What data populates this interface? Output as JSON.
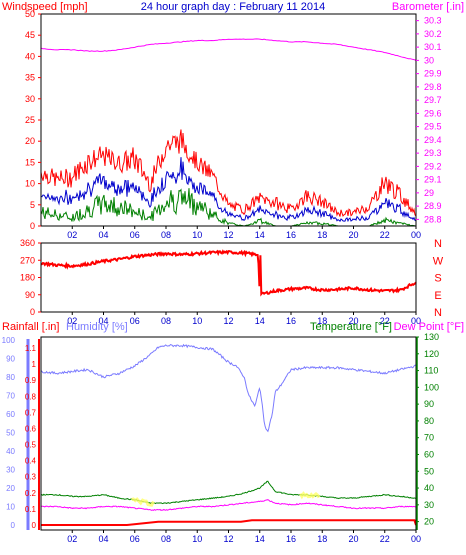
{
  "colors": {
    "wind_speed": "#ff0000",
    "wind_avg": "#0000cc",
    "wind_gust_base": "#008000",
    "barometer": "#ff00ff",
    "title": "#0000cc",
    "direction": "#ff0000",
    "rainfall": "#ff0000",
    "humidity": "#7b7bff",
    "temperature": "#008000",
    "dewpoint": "#ff00ff",
    "axis": "#0000cc",
    "grid": "#d8d8d8",
    "frame": "#000000"
  },
  "chart_data": [
    {
      "type": "line",
      "title": "24 hour graph day : February 11 2014",
      "x_ticks": [
        "02",
        "04",
        "06",
        "08",
        "10",
        "12",
        "14",
        "16",
        "18",
        "20",
        "22",
        "00"
      ],
      "left_axis": {
        "label": "Windspeed [mph]",
        "ticks": [
          0,
          5,
          10,
          15,
          20,
          25,
          30,
          35,
          40,
          45,
          50
        ],
        "ylim": [
          0,
          50
        ]
      },
      "right_axis": {
        "label": "Barometer [.in]",
        "ticks": [
          28.8,
          28.9,
          29.0,
          29.1,
          29.2,
          29.3,
          29.4,
          29.5,
          29.6,
          29.7,
          29.8,
          29.9,
          30.0,
          30.1,
          30.2,
          30.3
        ],
        "tick_labels": [
          "28.8",
          "28.9",
          "29",
          "29.1",
          "29.2",
          "29.3",
          "29.4",
          "29.5",
          "29.6",
          "29.7",
          "29.8",
          "29.9",
          "30",
          "30.1",
          "30.2",
          "30.3"
        ],
        "ylim": [
          28.75,
          30.35
        ]
      },
      "series": [
        {
          "name": "Windspeed [mph]",
          "axis": "left",
          "style": "band",
          "hours": [
            0,
            1,
            2,
            3,
            4,
            5,
            6,
            7,
            8,
            9,
            10,
            11,
            12,
            13,
            14,
            15,
            16,
            17,
            18,
            19,
            20,
            21,
            22,
            23,
            24
          ],
          "low": [
            5,
            4,
            3,
            6,
            8,
            7,
            5,
            3,
            9,
            10,
            8,
            4,
            1,
            0,
            2,
            0,
            0,
            1,
            1,
            0,
            0,
            0,
            2,
            1,
            0
          ],
          "high": [
            15,
            13,
            14,
            18,
            19,
            17,
            19,
            12,
            22,
            23,
            17,
            14,
            6,
            5,
            8,
            7,
            5,
            9,
            7,
            4,
            4,
            6,
            13,
            9,
            4
          ]
        },
        {
          "name": "Barometer [.in]",
          "axis": "right",
          "hours": [
            0,
            1,
            2,
            3,
            4,
            5,
            6,
            7,
            8,
            9,
            10,
            11,
            12,
            13,
            14,
            15,
            16,
            17,
            18,
            19,
            20,
            21,
            22,
            23,
            24
          ],
          "values": [
            30.09,
            30.08,
            30.08,
            30.07,
            30.07,
            30.08,
            30.1,
            30.12,
            30.13,
            30.14,
            30.15,
            30.15,
            30.16,
            30.16,
            30.16,
            30.15,
            30.14,
            30.14,
            30.13,
            30.12,
            30.1,
            30.08,
            30.06,
            30.03,
            30.0
          ]
        }
      ],
      "grid": false
    },
    {
      "type": "line",
      "x_ticks": [
        "02",
        "04",
        "06",
        "08",
        "10",
        "12",
        "14",
        "16",
        "18",
        "20",
        "22",
        "00"
      ],
      "left_axis": {
        "label": "",
        "ticks": [
          0,
          90,
          180,
          270,
          360
        ],
        "tick_labels": [
          "0",
          "90",
          "180",
          "270",
          "360"
        ],
        "ylim": [
          0,
          360
        ]
      },
      "right_axis_labels": [
        "N",
        "W",
        "S",
        "E",
        "N"
      ],
      "series": [
        {
          "name": "Wind direction",
          "hours": [
            0,
            1,
            2,
            3,
            4,
            5,
            6,
            7,
            8,
            9,
            10,
            11,
            12,
            13,
            13.7,
            13.9,
            14.0,
            14.2,
            15,
            16,
            17,
            18,
            19,
            20,
            21,
            22,
            23,
            24
          ],
          "values": [
            255,
            245,
            240,
            250,
            265,
            275,
            290,
            298,
            305,
            300,
            305,
            310,
            312,
            308,
            300,
            300,
            90,
            95,
            110,
            120,
            125,
            115,
            118,
            125,
            115,
            110,
            115,
            155
          ]
        }
      ],
      "grid": false
    },
    {
      "type": "line",
      "x_ticks": [
        "02",
        "04",
        "06",
        "08",
        "10",
        "12",
        "14",
        "16",
        "18",
        "20",
        "22",
        "00"
      ],
      "rain_axis": {
        "label": "Rainfall [.in]",
        "ticks": [
          0,
          0.1,
          0.2,
          0.3,
          0.4,
          0.5,
          0.6,
          0.7,
          0.8,
          0.9,
          1.0,
          1.1
        ],
        "tick_labels": [
          "0",
          "0.1",
          "0.2",
          "0.3",
          "0.4",
          "0.5",
          "0.6",
          "0.7",
          "0.8",
          "0.9",
          "1",
          "1.1"
        ],
        "ylim": [
          0,
          1.15
        ]
      },
      "humidity_axis": {
        "label": "Humidity [%]",
        "ticks": [
          0,
          10,
          20,
          30,
          40,
          50,
          60,
          70,
          80,
          90,
          100
        ],
        "ylim": [
          0,
          100
        ]
      },
      "temperature_axis": {
        "label": "Temperature [°F]",
        "ticks": [
          20,
          30,
          40,
          50,
          60,
          70,
          80,
          90,
          100,
          110,
          120,
          130
        ],
        "ylim": [
          15,
          130
        ]
      },
      "dewpoint_label": "Dew Point [°F]",
      "series": [
        {
          "name": "Humidity [%]",
          "hours": [
            0,
            1,
            2,
            3,
            4,
            5,
            6,
            7,
            7.5,
            8,
            9,
            10,
            11,
            12,
            12.5,
            13,
            13.3,
            13.7,
            14,
            14.3,
            14.5,
            14.8,
            15,
            15.3,
            15.7,
            16,
            17,
            18,
            19,
            20,
            21,
            22,
            23,
            24
          ],
          "values": [
            83,
            82,
            83,
            84,
            80,
            82,
            86,
            92,
            96,
            97,
            97,
            96,
            95,
            88,
            86,
            80,
            70,
            64,
            75,
            55,
            50,
            60,
            72,
            75,
            80,
            84,
            85,
            85,
            85,
            84,
            83,
            82,
            84,
            86
          ]
        },
        {
          "name": "Temperature [°F]",
          "hours": [
            0,
            1,
            2,
            3,
            4,
            5,
            6,
            7,
            8,
            9,
            10,
            11,
            12,
            13,
            14,
            14.5,
            15,
            16,
            17,
            18,
            19,
            20,
            21,
            22,
            23,
            24
          ],
          "values": [
            36,
            36,
            35,
            35,
            36,
            34,
            33,
            31,
            31,
            32,
            33,
            34,
            35,
            37,
            40,
            44,
            38,
            36,
            36,
            35,
            34,
            34,
            35,
            36,
            35,
            34
          ]
        },
        {
          "name": "Dew Point [°F]",
          "hours": [
            0,
            1,
            2,
            3,
            4,
            5,
            6,
            7,
            8,
            9,
            10,
            11,
            12,
            13,
            14,
            14.5,
            15,
            16,
            17,
            18,
            19,
            20,
            21,
            22,
            23,
            24
          ],
          "values": [
            29,
            29,
            28,
            28,
            29,
            29,
            28,
            27,
            27,
            28,
            29,
            29,
            30,
            31,
            32,
            33,
            31,
            30,
            31,
            30,
            29,
            28,
            28,
            28,
            29,
            29
          ]
        },
        {
          "name": "Rainfall [.in]",
          "hours": [
            0,
            5.5,
            6.5,
            7.5,
            12.8,
            13.5,
            23.9,
            24.0
          ],
          "values": [
            0,
            0,
            0.01,
            0.02,
            0.02,
            0.03,
            0.03,
            0.0
          ]
        }
      ],
      "grid": false
    }
  ]
}
